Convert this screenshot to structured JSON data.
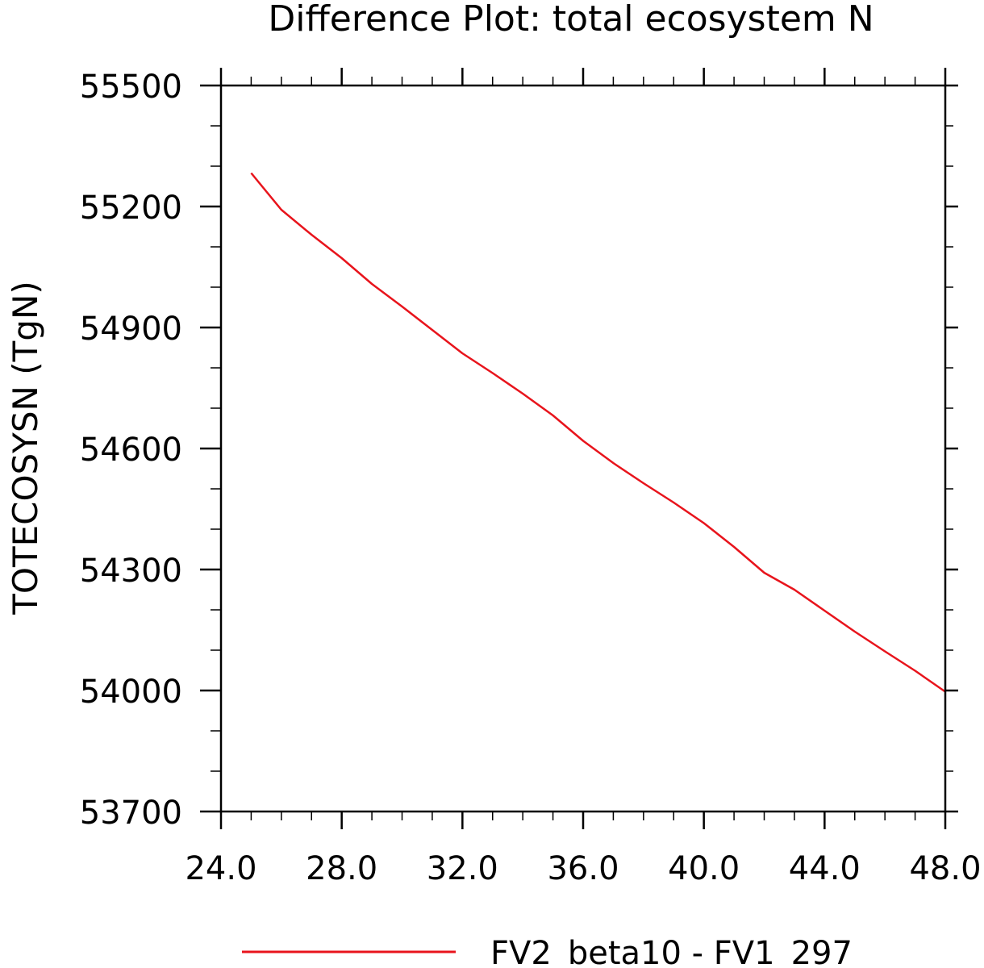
{
  "chart_data": {
    "type": "line",
    "title": "Difference Plot: total ecosystem N",
    "xlabel": "",
    "ylabel": "TOTECOSYSN   (TgN)",
    "xlim": [
      24.0,
      48.0
    ],
    "ylim": [
      53700,
      55500
    ],
    "xticks": [
      24.0,
      28.0,
      32.0,
      36.0,
      40.0,
      44.0,
      48.0
    ],
    "xtick_labels": [
      "24.0",
      "28.0",
      "32.0",
      "36.0",
      "40.0",
      "44.0",
      "48.0"
    ],
    "yticks": [
      53700,
      54000,
      54300,
      54600,
      54900,
      55200,
      55500
    ],
    "ytick_labels": [
      "53700",
      "54000",
      "54300",
      "54600",
      "54900",
      "55200",
      "55500"
    ],
    "grid": false,
    "legend_position": "bottom-center",
    "series": [
      {
        "name": "FV2_beta10 - FV1_297",
        "color": "#e8141c",
        "x": [
          25,
          26,
          27,
          28,
          29,
          30,
          31,
          32,
          33,
          34,
          35,
          36,
          37,
          38,
          39,
          40,
          41,
          42,
          43,
          44,
          45,
          46,
          47,
          48
        ],
        "y": [
          55283,
          55192,
          55130,
          55072,
          55008,
          54952,
          54894,
          54836,
          54787,
          54736,
          54682,
          54619,
          54564,
          54514,
          54466,
          54415,
          54356,
          54292,
          54250,
          54198,
          54146,
          54097,
          54049,
          53997
        ]
      }
    ]
  }
}
